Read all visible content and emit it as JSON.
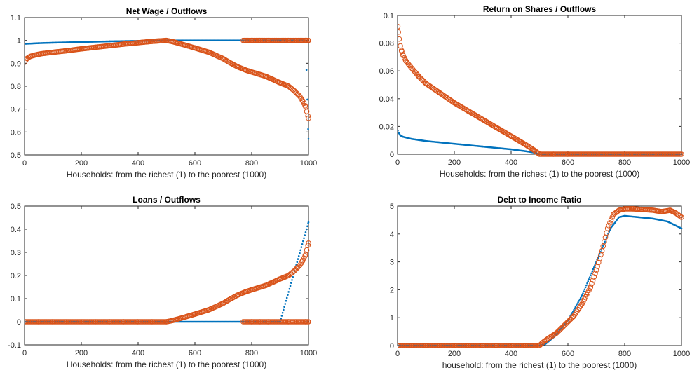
{
  "colors": {
    "series_blue": "#0072BD",
    "series_orange": "#D95319",
    "axis": "#262626",
    "background": "#ffffff"
  },
  "chart_data": [
    {
      "type": "scatter",
      "title": "Net Wage / Outflows",
      "xlabel": "Households: from the richest (1) to the poorest (1000)",
      "ylabel": "",
      "xlim": [
        0,
        1000
      ],
      "ylim": [
        0.5,
        1.1
      ],
      "xticks": [
        0,
        200,
        400,
        600,
        800,
        1000
      ],
      "yticks": [
        0.5,
        0.6,
        0.7,
        0.8,
        0.9,
        1,
        1.1
      ],
      "xtick_labels": [
        "0",
        "200",
        "400",
        "600",
        "800",
        "1000"
      ],
      "ytick_labels": [
        "0.5",
        "0.6",
        "0.7",
        "0.8",
        "0.9",
        "1",
        "1.1"
      ],
      "grid": false,
      "series": [
        {
          "marker": "dot",
          "color": "#0072BD",
          "x": [
            1,
            50,
            100,
            200,
            300,
            400,
            500,
            770,
            800,
            900,
            990,
            1000
          ],
          "y": [
            0.985,
            0.988,
            0.99,
            0.993,
            0.996,
            0.998,
            1.0,
            1.0,
            1.0,
            1.0,
            1.0,
            0.57
          ]
        },
        {
          "marker": "circle",
          "color": "#D95319",
          "x": [
            1,
            5,
            10,
            20,
            40,
            60,
            100,
            150,
            200,
            250,
            300,
            350,
            400,
            450,
            500,
            520,
            550,
            600,
            650,
            700,
            720,
            750,
            780,
            800,
            850,
            900,
            930,
            950,
            970,
            980,
            990,
            1000,
            770,
            790,
            800,
            830,
            860,
            900,
            930,
            960,
            990,
            1000
          ],
          "y": [
            0.905,
            0.915,
            0.922,
            0.93,
            0.937,
            0.942,
            0.948,
            0.955,
            0.963,
            0.97,
            0.977,
            0.984,
            0.99,
            0.996,
            1.0,
            0.995,
            0.985,
            0.967,
            0.948,
            0.92,
            0.905,
            0.885,
            0.87,
            0.862,
            0.843,
            0.815,
            0.8,
            0.78,
            0.755,
            0.735,
            0.71,
            0.66,
            1.0,
            1.0,
            1.0,
            1.0,
            1.0,
            1.0,
            1.0,
            1.0,
            1.0,
            1.0
          ]
        }
      ]
    },
    {
      "type": "scatter",
      "title": "Return on Shares / Outflows",
      "xlabel": "Households: from the richest (1) to the poorest (1000)",
      "ylabel": "",
      "xlim": [
        0,
        1000
      ],
      "ylim": [
        0,
        0.1
      ],
      "xticks": [
        0,
        200,
        400,
        600,
        800,
        1000
      ],
      "yticks": [
        0,
        0.02,
        0.04,
        0.06,
        0.08,
        0.1
      ],
      "xtick_labels": [
        "0",
        "200",
        "400",
        "600",
        "800",
        "1000"
      ],
      "ytick_labels": [
        "0",
        "0.02",
        "0.04",
        "0.06",
        "0.08",
        "0.1"
      ],
      "grid": false,
      "series": [
        {
          "marker": "dot",
          "color": "#0072BD",
          "x": [
            1,
            5,
            10,
            20,
            50,
            100,
            200,
            300,
            400,
            450,
            480,
            500,
            600,
            700,
            800,
            900,
            1000
          ],
          "y": [
            0.017,
            0.015,
            0.0135,
            0.0125,
            0.011,
            0.0095,
            0.0075,
            0.0055,
            0.0035,
            0.0022,
            0.0012,
            0.0,
            0.0,
            0.0,
            0.0,
            0.0,
            0.0
          ]
        },
        {
          "marker": "circle",
          "color": "#D95319",
          "x": [
            1,
            3,
            6,
            10,
            15,
            20,
            30,
            50,
            75,
            100,
            150,
            200,
            250,
            300,
            350,
            400,
            450,
            480,
            500,
            550,
            600,
            700,
            800,
            900,
            1000
          ],
          "y": [
            0.092,
            0.088,
            0.083,
            0.078,
            0.074,
            0.071,
            0.067,
            0.062,
            0.056,
            0.051,
            0.044,
            0.037,
            0.031,
            0.025,
            0.019,
            0.013,
            0.007,
            0.003,
            0.0,
            0.0,
            0.0,
            0.0,
            0.0,
            0.0,
            0.0
          ]
        }
      ]
    },
    {
      "type": "scatter",
      "title": "Loans / Outflows",
      "xlabel": "Households: from the richest (1) to the poorest (1000)",
      "ylabel": "",
      "xlim": [
        0,
        1000
      ],
      "ylim": [
        -0.1,
        0.5
      ],
      "xticks": [
        0,
        200,
        400,
        600,
        800,
        1000
      ],
      "yticks": [
        -0.1,
        0,
        0.1,
        0.2,
        0.3,
        0.4,
        0.5
      ],
      "xtick_labels": [
        "0",
        "200",
        "400",
        "600",
        "800",
        "1000"
      ],
      "ytick_labels": [
        "-0.1",
        "0",
        "0.1",
        "0.2",
        "0.3",
        "0.4",
        "0.5"
      ],
      "grid": false,
      "series": [
        {
          "marker": "dot",
          "color": "#0072BD",
          "x": [
            1,
            100,
            200,
            300,
            400,
            500,
            770,
            800,
            900,
            1000
          ],
          "y": [
            0.0,
            0.0,
            0.0,
            0.0,
            0.0,
            0.0,
            0.0,
            0.0,
            0.0,
            0.43
          ]
        },
        {
          "marker": "circle",
          "color": "#D95319",
          "x": [
            1,
            50,
            100,
            150,
            200,
            250,
            300,
            350,
            400,
            450,
            500,
            520,
            550,
            600,
            650,
            700,
            720,
            750,
            780,
            800,
            850,
            900,
            930,
            950,
            970,
            980,
            990,
            1000,
            770,
            790,
            800,
            830,
            860,
            900,
            930,
            960,
            990,
            1000
          ],
          "y": [
            0.0,
            0.0,
            0.0,
            0.0,
            0.0,
            0.0,
            0.0,
            0.0,
            0.0,
            0.0,
            0.0,
            0.005,
            0.015,
            0.033,
            0.052,
            0.08,
            0.095,
            0.115,
            0.13,
            0.138,
            0.157,
            0.185,
            0.2,
            0.22,
            0.245,
            0.265,
            0.29,
            0.34,
            0.0,
            0.0,
            0.0,
            0.0,
            0.0,
            0.0,
            0.0,
            0.0,
            0.0,
            0.0
          ]
        }
      ]
    },
    {
      "type": "scatter",
      "title": "Debt to Income Ratio",
      "xlabel": "household: from the richest (1) to the poorest (1000)",
      "ylabel": "",
      "xlim": [
        0,
        1000
      ],
      "ylim": [
        0,
        5
      ],
      "xticks": [
        0,
        200,
        400,
        600,
        800,
        1000
      ],
      "yticks": [
        0,
        1,
        2,
        3,
        4,
        5
      ],
      "xtick_labels": [
        "0",
        "200",
        "400",
        "600",
        "800",
        "1000"
      ],
      "ytick_labels": [
        "0",
        "1",
        "2",
        "3",
        "4",
        "5"
      ],
      "grid": false,
      "series": [
        {
          "marker": "dot",
          "color": "#0072BD",
          "x": [
            1,
            100,
            200,
            300,
            400,
            500,
            520,
            550,
            600,
            650,
            700,
            750,
            780,
            800,
            850,
            900,
            950,
            1000
          ],
          "y": [
            0.0,
            0.0,
            0.0,
            0.0,
            0.0,
            0.0,
            0.05,
            0.3,
            0.9,
            1.8,
            3.0,
            4.2,
            4.6,
            4.65,
            4.6,
            4.55,
            4.45,
            4.2
          ]
        },
        {
          "marker": "circle",
          "color": "#D95319",
          "x": [
            1,
            50,
            100,
            150,
            200,
            250,
            300,
            350,
            400,
            450,
            500,
            510,
            530,
            560,
            590,
            620,
            650,
            680,
            700,
            720,
            740,
            760,
            780,
            800,
            830,
            860,
            900,
            930,
            960,
            980,
            1000
          ],
          "y": [
            0.0,
            0.0,
            0.0,
            0.0,
            0.0,
            0.0,
            0.0,
            0.0,
            0.0,
            0.0,
            0.0,
            0.1,
            0.25,
            0.45,
            0.75,
            1.05,
            1.5,
            2.1,
            2.7,
            3.4,
            4.2,
            4.7,
            4.85,
            4.9,
            4.9,
            4.88,
            4.85,
            4.8,
            4.85,
            4.75,
            4.6
          ]
        }
      ]
    }
  ]
}
